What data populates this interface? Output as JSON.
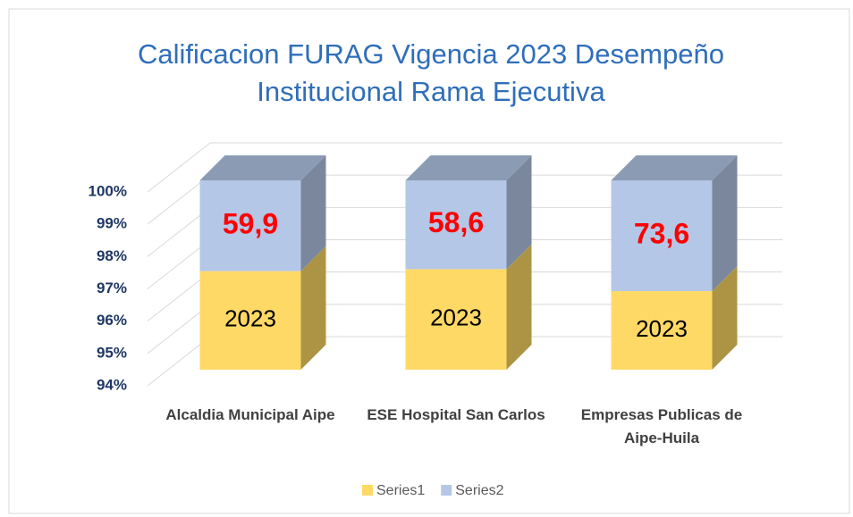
{
  "chart_data": {
    "type": "bar",
    "stacking": "percent",
    "title": "Calificacion FURAG Vigencia 2023 Desempeño Institucional Rama Ejecutiva",
    "categories": [
      "Alcaldia Municipal Aipe",
      "ESE Hospital San Carlos",
      "Empresas Publicas de Aipe-Huila"
    ],
    "series": [
      {
        "name": "Series1",
        "color": "#FFD966",
        "values": [
          2023,
          2023,
          2023
        ]
      },
      {
        "name": "Series2",
        "color": "#B4C7E7",
        "values": [
          59.9,
          58.6,
          73.6
        ],
        "value_labels": [
          "59,9",
          "58,6",
          "73,6"
        ]
      }
    ],
    "ylim": [
      94,
      100
    ],
    "yticks": [
      {
        "value": 94,
        "label": "94%"
      },
      {
        "value": 95,
        "label": "95%"
      },
      {
        "value": 96,
        "label": "96%"
      },
      {
        "value": 97,
        "label": "97%"
      },
      {
        "value": 98,
        "label": "98%"
      },
      {
        "value": 99,
        "label": "99%"
      },
      {
        "value": 100,
        "label": "100%"
      }
    ],
    "grid": true,
    "legend": "bottom"
  }
}
